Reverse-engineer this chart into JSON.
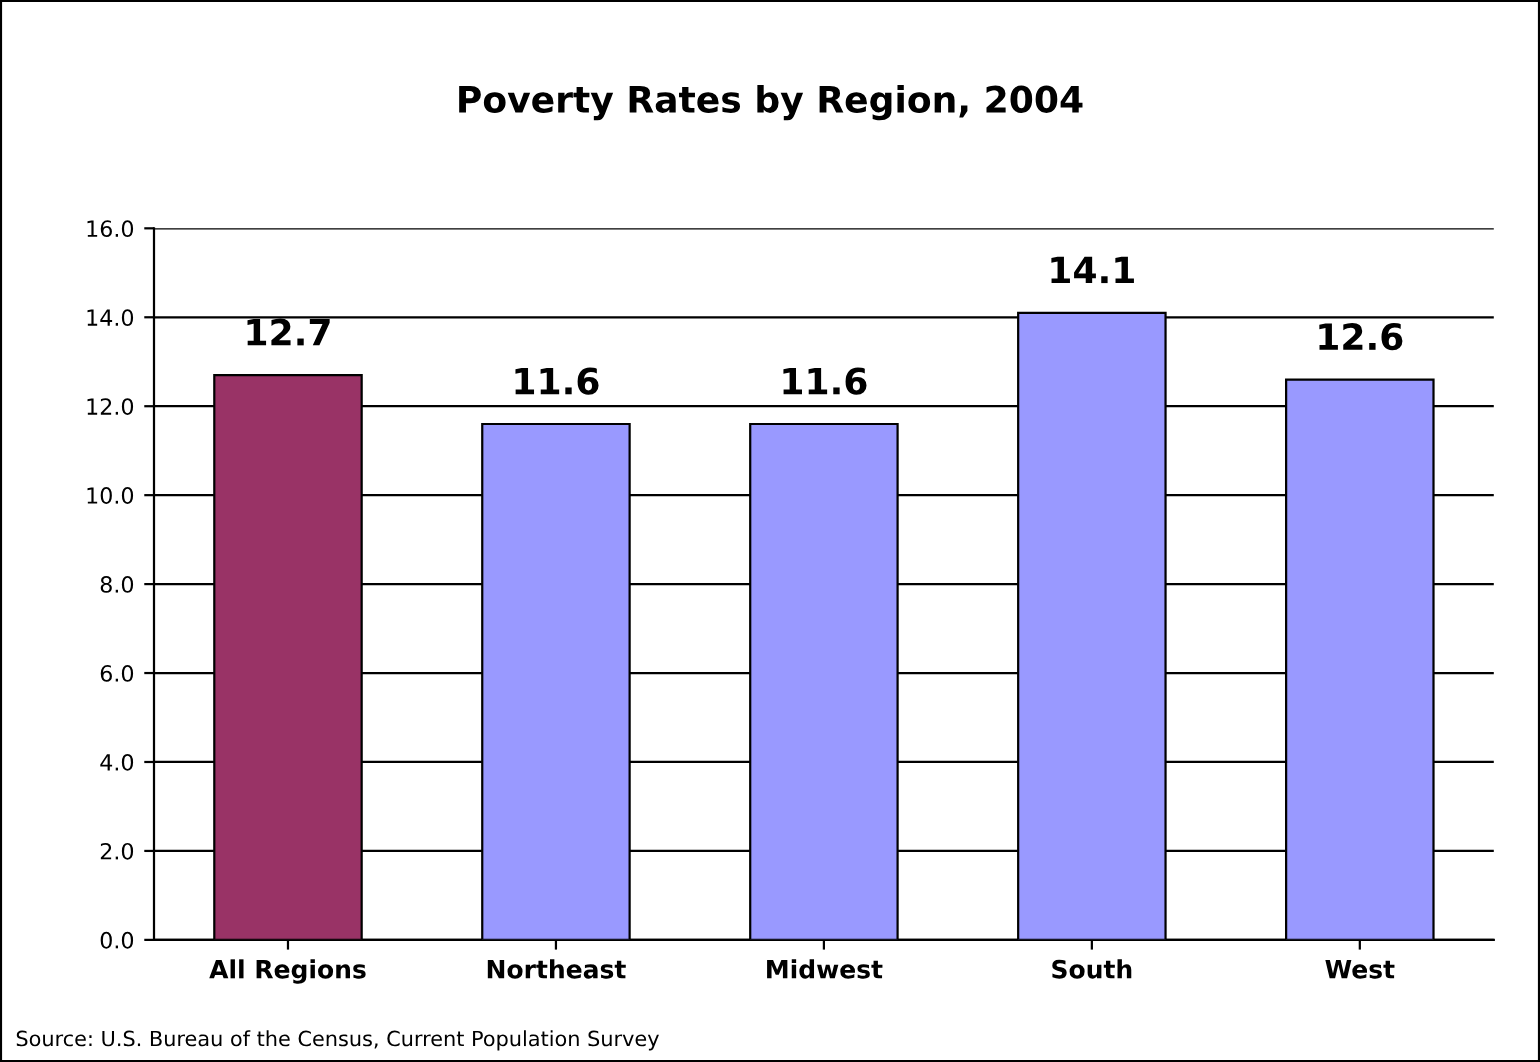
{
  "chart_data": {
    "type": "bar",
    "title": "Poverty Rates by Region, 2004",
    "categories": [
      "All Regions",
      "Northeast",
      "Midwest",
      "South",
      "West"
    ],
    "values": [
      12.7,
      11.6,
      11.6,
      14.1,
      12.6
    ],
    "colors": [
      "#993366",
      "#9999ff",
      "#9999ff",
      "#9999ff",
      "#9999ff"
    ],
    "ylim": [
      0,
      16
    ],
    "yticks": [
      {
        "value": 0,
        "label": "0.0"
      },
      {
        "value": 2,
        "label": "2.0"
      },
      {
        "value": 4,
        "label": "4.0"
      },
      {
        "value": 6,
        "label": "6.0"
      },
      {
        "value": 8,
        "label": "8.0"
      },
      {
        "value": 10,
        "label": "10.0"
      },
      {
        "value": 12,
        "label": "12.0"
      },
      {
        "value": 14,
        "label": "14.0"
      },
      {
        "value": 16,
        "label": "16.0"
      }
    ],
    "grid": "y",
    "data_labels": true,
    "annotations": [
      "Source: U.S. Bureau of the Census, Current Population Survey"
    ]
  }
}
